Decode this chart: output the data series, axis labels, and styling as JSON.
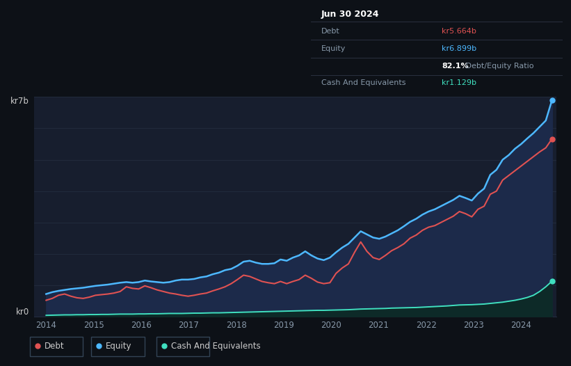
{
  "background_color": "#0d1117",
  "plot_bg_color": "#171e2e",
  "title_box": {
    "date": "Jun 30 2024",
    "debt_label": "Debt",
    "debt_value": "kr5.664b",
    "equity_label": "Equity",
    "equity_value": "kr6.899b",
    "ratio_text": "82.1%",
    "ratio_suffix": " Debt/Equity Ratio",
    "cash_label": "Cash And Equivalents",
    "cash_value": "kr1.129b"
  },
  "ylabel_top": "kr7b",
  "ylabel_bottom": "kr0",
  "colors": {
    "debt": "#e05252",
    "equity": "#4db8ff",
    "cash": "#40e0c0",
    "grid": "#232d3f"
  },
  "debt": [
    0.52,
    0.58,
    0.68,
    0.72,
    0.65,
    0.6,
    0.58,
    0.62,
    0.68,
    0.7,
    0.72,
    0.75,
    0.8,
    0.95,
    0.9,
    0.88,
    0.98,
    0.92,
    0.85,
    0.8,
    0.75,
    0.72,
    0.68,
    0.65,
    0.68,
    0.72,
    0.75,
    0.82,
    0.88,
    0.95,
    1.05,
    1.18,
    1.32,
    1.28,
    1.2,
    1.12,
    1.08,
    1.05,
    1.12,
    1.05,
    1.12,
    1.18,
    1.32,
    1.22,
    1.1,
    1.05,
    1.08,
    1.38,
    1.55,
    1.68,
    2.05,
    2.38,
    2.08,
    1.88,
    1.82,
    1.95,
    2.1,
    2.2,
    2.32,
    2.5,
    2.6,
    2.75,
    2.85,
    2.9,
    3.0,
    3.1,
    3.2,
    3.35,
    3.28,
    3.18,
    3.42,
    3.52,
    3.9,
    4.0,
    4.35,
    4.5,
    4.65,
    4.8,
    4.95,
    5.1,
    5.25,
    5.38,
    5.664
  ],
  "equity": [
    0.72,
    0.78,
    0.82,
    0.85,
    0.88,
    0.9,
    0.92,
    0.95,
    0.98,
    1.0,
    1.02,
    1.05,
    1.08,
    1.1,
    1.08,
    1.1,
    1.15,
    1.12,
    1.1,
    1.08,
    1.1,
    1.15,
    1.18,
    1.18,
    1.2,
    1.25,
    1.28,
    1.35,
    1.4,
    1.48,
    1.52,
    1.62,
    1.75,
    1.78,
    1.72,
    1.68,
    1.68,
    1.7,
    1.82,
    1.78,
    1.88,
    1.95,
    2.08,
    1.95,
    1.85,
    1.8,
    1.88,
    2.05,
    2.2,
    2.32,
    2.52,
    2.72,
    2.62,
    2.52,
    2.48,
    2.55,
    2.65,
    2.75,
    2.88,
    3.02,
    3.12,
    3.25,
    3.35,
    3.42,
    3.52,
    3.62,
    3.72,
    3.85,
    3.78,
    3.7,
    3.92,
    4.08,
    4.52,
    4.68,
    5.0,
    5.15,
    5.35,
    5.5,
    5.68,
    5.85,
    6.05,
    6.25,
    6.899
  ],
  "cash": [
    0.04,
    0.045,
    0.05,
    0.055,
    0.055,
    0.06,
    0.06,
    0.065,
    0.065,
    0.07,
    0.07,
    0.075,
    0.08,
    0.08,
    0.08,
    0.085,
    0.085,
    0.09,
    0.09,
    0.095,
    0.1,
    0.1,
    0.1,
    0.105,
    0.11,
    0.11,
    0.115,
    0.12,
    0.12,
    0.125,
    0.13,
    0.135,
    0.14,
    0.145,
    0.15,
    0.155,
    0.16,
    0.165,
    0.17,
    0.175,
    0.18,
    0.185,
    0.19,
    0.195,
    0.2,
    0.2,
    0.205,
    0.21,
    0.215,
    0.22,
    0.23,
    0.24,
    0.245,
    0.25,
    0.255,
    0.26,
    0.27,
    0.275,
    0.28,
    0.285,
    0.29,
    0.3,
    0.31,
    0.32,
    0.33,
    0.34,
    0.355,
    0.37,
    0.375,
    0.38,
    0.39,
    0.4,
    0.42,
    0.44,
    0.46,
    0.49,
    0.52,
    0.56,
    0.61,
    0.68,
    0.8,
    0.95,
    1.129
  ],
  "ylim": [
    0,
    7.0
  ],
  "xlim_start": 2013.75,
  "xlim_end": 2024.75,
  "legend": [
    {
      "label": "Debt",
      "color": "#e05252"
    },
    {
      "label": "Equity",
      "color": "#4db8ff"
    },
    {
      "label": "Cash And Equivalents",
      "color": "#40e0c0"
    }
  ]
}
